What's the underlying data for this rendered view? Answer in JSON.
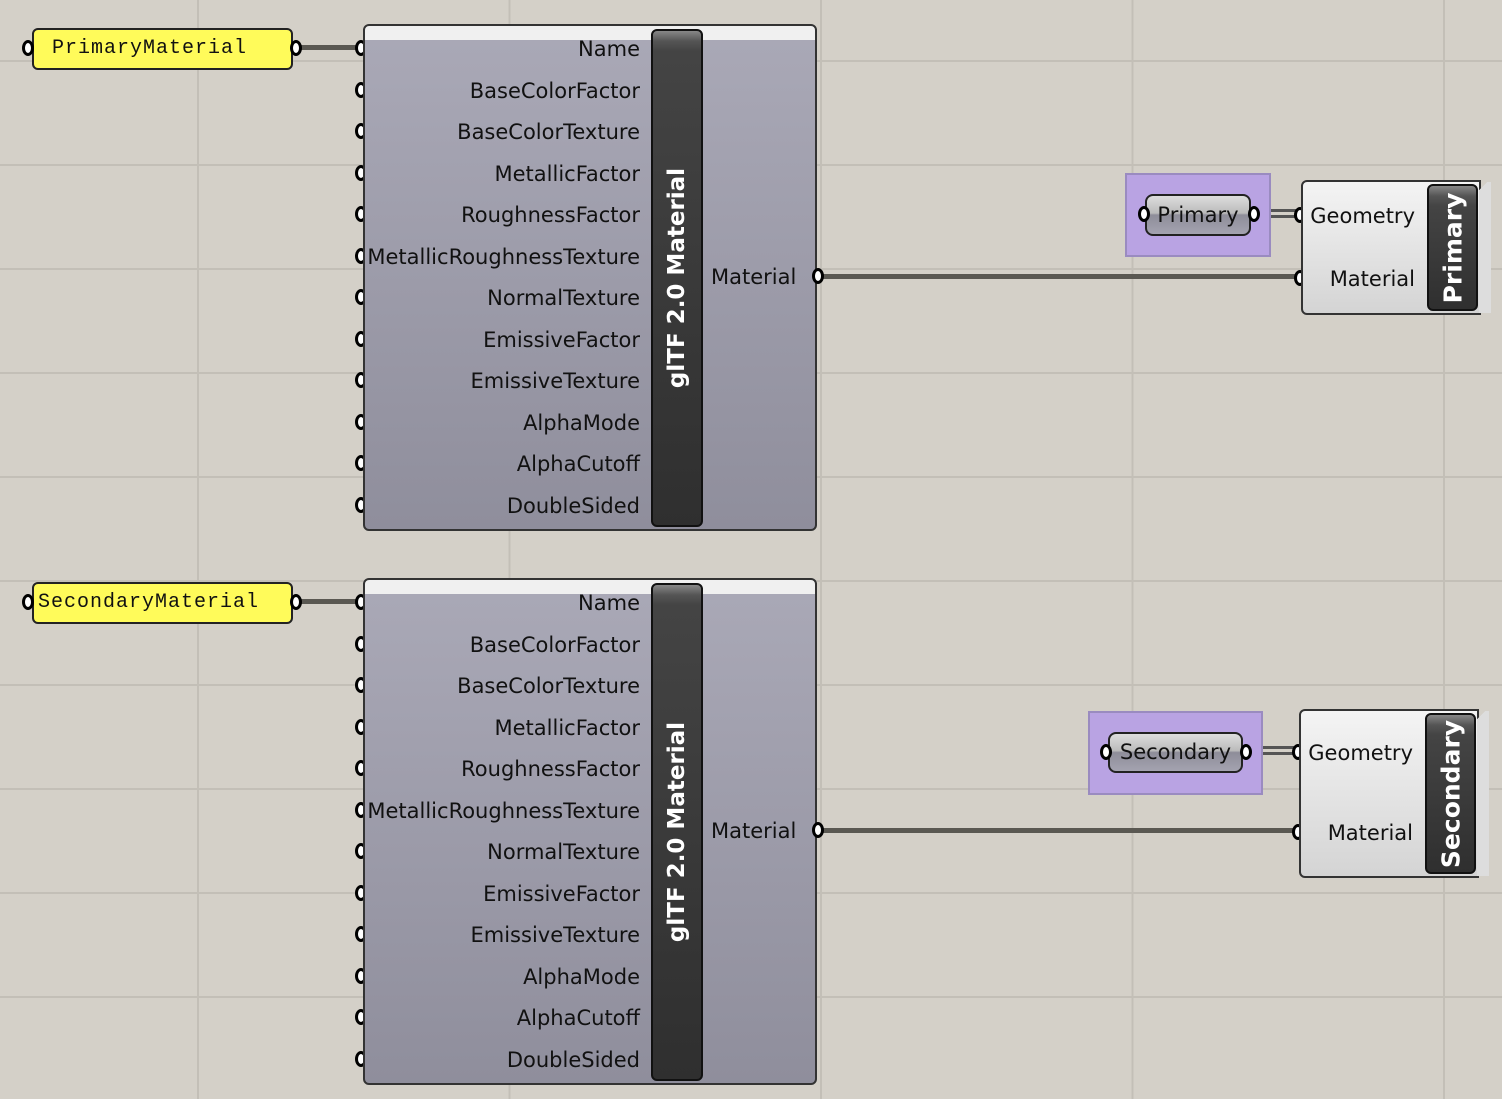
{
  "colors": {
    "canvas": "#d4d0c8",
    "panel": "#fffb5a",
    "group": "#b9a3e3",
    "wire": "#5a5852"
  },
  "panels": [
    {
      "text": "PrimaryMaterial"
    },
    {
      "text": "SecondaryMaterial"
    }
  ],
  "material_components": [
    {
      "title": "glTF 2.0 Material",
      "output": "Material",
      "inputs": [
        "Name",
        "BaseColorFactor",
        "BaseColorTexture",
        "MetallicFactor",
        "RoughnessFactor",
        "MetallicRoughnessTexture",
        "NormalTexture",
        "EmissiveFactor",
        "EmissiveTexture",
        "AlphaMode",
        "AlphaCutoff",
        "DoubleSided"
      ]
    },
    {
      "title": "glTF 2.0 Material",
      "output": "Material",
      "inputs": [
        "Name",
        "BaseColorFactor",
        "BaseColorTexture",
        "MetallicFactor",
        "RoughnessFactor",
        "MetallicRoughnessTexture",
        "NormalTexture",
        "EmissiveFactor",
        "EmissiveTexture",
        "AlphaMode",
        "AlphaCutoff",
        "DoubleSided"
      ]
    }
  ],
  "params": [
    {
      "label": "Primary"
    },
    {
      "label": "Secondary"
    }
  ],
  "bake_components": [
    {
      "title": "Primary",
      "inputs": [
        "Geometry",
        "Material"
      ]
    },
    {
      "title": "Secondary",
      "inputs": [
        "Geometry",
        "Material"
      ]
    }
  ]
}
